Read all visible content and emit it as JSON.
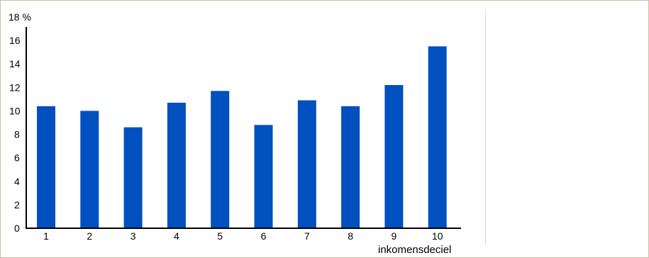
{
  "chart_data": {
    "type": "bar",
    "categories": [
      "1",
      "2",
      "3",
      "4",
      "5",
      "6",
      "7",
      "8",
      "9",
      "10"
    ],
    "values": [
      10.4,
      10.0,
      8.6,
      10.7,
      11.7,
      8.8,
      10.9,
      10.4,
      12.2,
      15.5
    ],
    "ylim": [
      0,
      18
    ],
    "yticks": [
      "0",
      "2",
      "4",
      "6",
      "8",
      "10",
      "12",
      "14",
      "16",
      "18 %"
    ],
    "xlabel": "inkomensdeciel",
    "ylabel": "",
    "title": "",
    "grid": false,
    "bar_color": "#0050bf"
  }
}
